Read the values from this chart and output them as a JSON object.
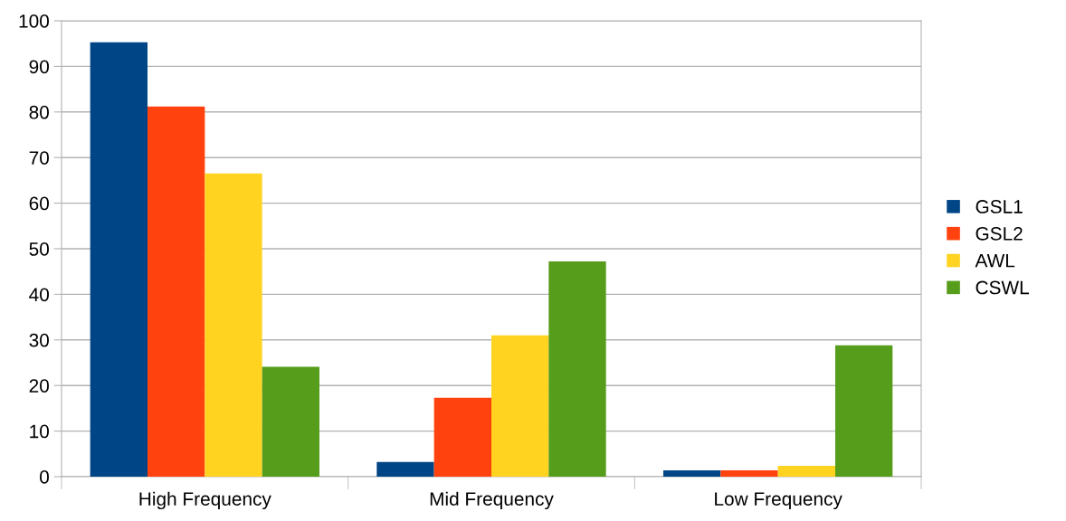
{
  "chart_data": {
    "type": "bar",
    "categories": [
      "High Frequency",
      "Mid Frequency",
      "Low Frequency"
    ],
    "series": [
      {
        "name": "GSL1",
        "color": "#004586",
        "values": [
          95.3,
          3.2,
          1.4
        ]
      },
      {
        "name": "GSL2",
        "color": "#ff420e",
        "values": [
          81.2,
          17.3,
          1.4
        ]
      },
      {
        "name": "AWL",
        "color": "#ffd320",
        "values": [
          66.5,
          31.0,
          2.4
        ]
      },
      {
        "name": "CSWL",
        "color": "#579d1c",
        "values": [
          24.1,
          47.2,
          28.8
        ]
      }
    ],
    "ylim": [
      0,
      100
    ],
    "yticks": [
      0,
      10,
      20,
      30,
      40,
      50,
      60,
      70,
      80,
      90,
      100
    ],
    "grid": "y",
    "legend": "right"
  }
}
